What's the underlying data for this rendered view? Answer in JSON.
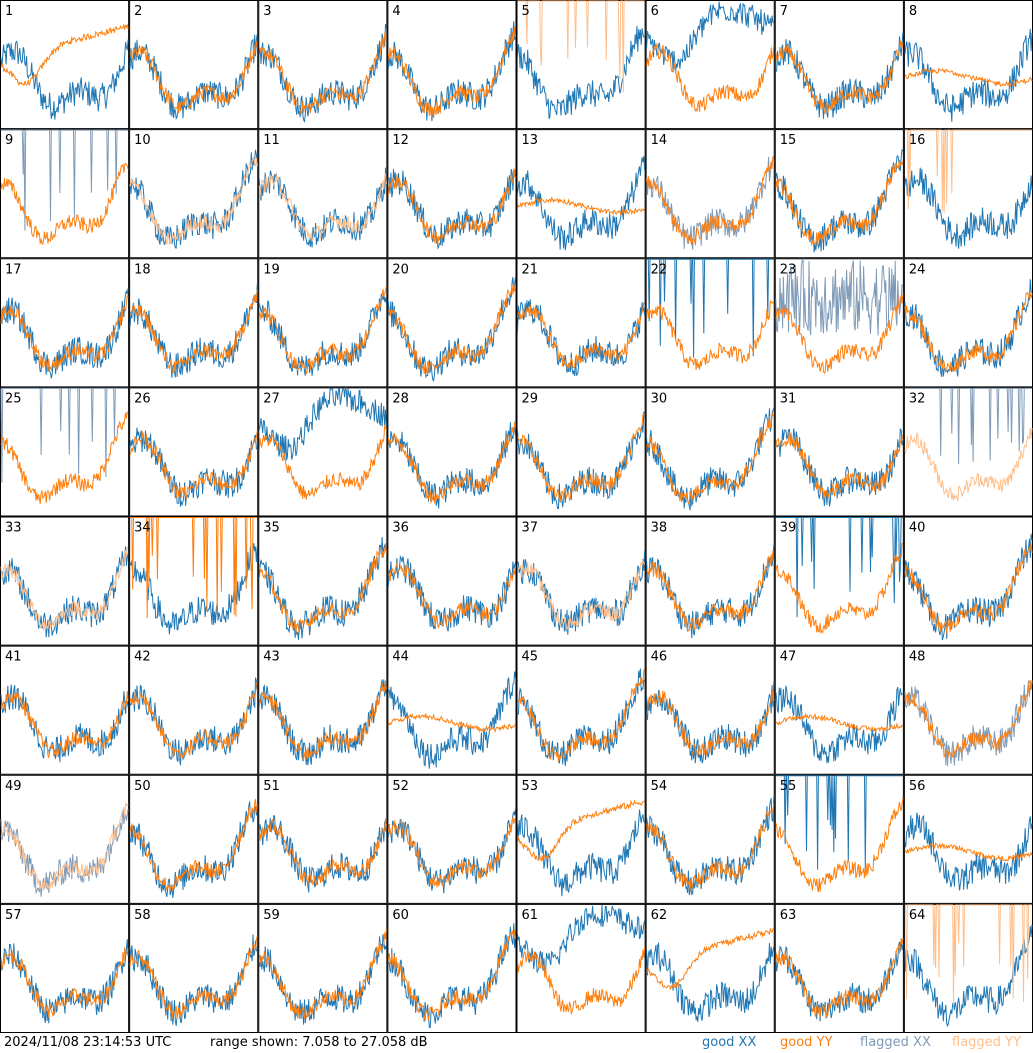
{
  "footer": {
    "timestamp": "2024/11/08 23:14:53 UTC",
    "range": "range shown: 7.058 to 27.058 dB"
  },
  "legend": [
    {
      "id": "good-xx",
      "label_a": "good ",
      "label_b": "XX",
      "color": "#1f77b4"
    },
    {
      "id": "good-yy",
      "label_a": "good ",
      "label_b": "YY",
      "color": "#ff7f0e"
    },
    {
      "id": "flag-xx",
      "label_a": "flagged ",
      "label_b": "XX",
      "color": "#7f9bb8"
    },
    {
      "id": "flag-yy",
      "label_a": "flagged ",
      "label_b": "YY",
      "color": "#ffbf8c"
    }
  ],
  "chart_data": {
    "type": "line",
    "grid": "8x8 small multiples",
    "ylim": [
      7.058,
      27.058
    ],
    "yunit": "dB",
    "series_names": [
      "good XX",
      "good YY",
      "flagged XX",
      "flagged YY"
    ],
    "colors": {
      "good_xx": "#1f77b4",
      "good_yy": "#ff7f0e",
      "flagged_xx": "#7f9bb8",
      "flagged_yy": "#ffbf8c"
    },
    "panels": [
      {
        "label": "1",
        "xx": "good",
        "yy": "good",
        "mode": "yy-low"
      },
      {
        "label": "2",
        "xx": "good",
        "yy": "good",
        "mode": "normal"
      },
      {
        "label": "3",
        "xx": "good",
        "yy": "good",
        "mode": "normal"
      },
      {
        "label": "4",
        "xx": "good",
        "yy": "good",
        "mode": "normal"
      },
      {
        "label": "5",
        "xx": "good",
        "yy": "flagged",
        "mode": "yy-spikes"
      },
      {
        "label": "6",
        "xx": "good",
        "yy": "good",
        "mode": "xx-low"
      },
      {
        "label": "7",
        "xx": "good",
        "yy": "good",
        "mode": "normal"
      },
      {
        "label": "8",
        "xx": "good",
        "yy": "good",
        "mode": "yy-flat"
      },
      {
        "label": "9",
        "xx": "flagged",
        "yy": "good",
        "mode": "xx-spikes"
      },
      {
        "label": "10",
        "xx": "good",
        "yy": "flagged",
        "mode": "normal"
      },
      {
        "label": "11",
        "xx": "good",
        "yy": "flagged",
        "mode": "normal"
      },
      {
        "label": "12",
        "xx": "good",
        "yy": "good",
        "mode": "normal"
      },
      {
        "label": "13",
        "xx": "good",
        "yy": "good",
        "mode": "yy-flat"
      },
      {
        "label": "14",
        "xx": "flagged",
        "yy": "good",
        "mode": "normal"
      },
      {
        "label": "15",
        "xx": "good",
        "yy": "good",
        "mode": "normal"
      },
      {
        "label": "16",
        "xx": "good",
        "yy": "flagged",
        "mode": "yy-spikes"
      },
      {
        "label": "17",
        "xx": "good",
        "yy": "good",
        "mode": "normal"
      },
      {
        "label": "18",
        "xx": "good",
        "yy": "good",
        "mode": "normal"
      },
      {
        "label": "19",
        "xx": "good",
        "yy": "good",
        "mode": "normal"
      },
      {
        "label": "20",
        "xx": "good",
        "yy": "good",
        "mode": "normal"
      },
      {
        "label": "21",
        "xx": "good",
        "yy": "good",
        "mode": "normal"
      },
      {
        "label": "22",
        "xx": "good",
        "yy": "good",
        "mode": "xx-spikes"
      },
      {
        "label": "23",
        "xx": "flagged",
        "yy": "good",
        "mode": "xx-noisy"
      },
      {
        "label": "24",
        "xx": "good",
        "yy": "good",
        "mode": "normal"
      },
      {
        "label": "25",
        "xx": "flagged",
        "yy": "good",
        "mode": "xx-spikes"
      },
      {
        "label": "26",
        "xx": "good",
        "yy": "good",
        "mode": "normal"
      },
      {
        "label": "27",
        "xx": "good",
        "yy": "good",
        "mode": "xx-low"
      },
      {
        "label": "28",
        "xx": "good",
        "yy": "good",
        "mode": "normal"
      },
      {
        "label": "29",
        "xx": "good",
        "yy": "good",
        "mode": "normal"
      },
      {
        "label": "30",
        "xx": "good",
        "yy": "good",
        "mode": "normal"
      },
      {
        "label": "31",
        "xx": "good",
        "yy": "good",
        "mode": "normal"
      },
      {
        "label": "32",
        "xx": "flagged",
        "yy": "flagged",
        "mode": "xx-spikes"
      },
      {
        "label": "33",
        "xx": "good",
        "yy": "flagged",
        "mode": "normal"
      },
      {
        "label": "34",
        "xx": "good",
        "yy": "good",
        "mode": "yy-spikes"
      },
      {
        "label": "35",
        "xx": "good",
        "yy": "good",
        "mode": "normal"
      },
      {
        "label": "36",
        "xx": "good",
        "yy": "good",
        "mode": "normal"
      },
      {
        "label": "37",
        "xx": "good",
        "yy": "flagged",
        "mode": "normal"
      },
      {
        "label": "38",
        "xx": "good",
        "yy": "good",
        "mode": "normal"
      },
      {
        "label": "39",
        "xx": "good",
        "yy": "good",
        "mode": "xx-spikes"
      },
      {
        "label": "40",
        "xx": "good",
        "yy": "good",
        "mode": "normal"
      },
      {
        "label": "41",
        "xx": "good",
        "yy": "good",
        "mode": "normal"
      },
      {
        "label": "42",
        "xx": "good",
        "yy": "good",
        "mode": "normal"
      },
      {
        "label": "43",
        "xx": "good",
        "yy": "good",
        "mode": "normal"
      },
      {
        "label": "44",
        "xx": "good",
        "yy": "good",
        "mode": "yy-flat"
      },
      {
        "label": "45",
        "xx": "good",
        "yy": "good",
        "mode": "normal"
      },
      {
        "label": "46",
        "xx": "good",
        "yy": "good",
        "mode": "normal"
      },
      {
        "label": "47",
        "xx": "good",
        "yy": "good",
        "mode": "yy-flat"
      },
      {
        "label": "48",
        "xx": "flagged",
        "yy": "good",
        "mode": "normal"
      },
      {
        "label": "49",
        "xx": "flagged",
        "yy": "flagged",
        "mode": "normal"
      },
      {
        "label": "50",
        "xx": "good",
        "yy": "good",
        "mode": "normal"
      },
      {
        "label": "51",
        "xx": "good",
        "yy": "good",
        "mode": "normal"
      },
      {
        "label": "52",
        "xx": "good",
        "yy": "good",
        "mode": "normal"
      },
      {
        "label": "53",
        "xx": "good",
        "yy": "good",
        "mode": "yy-low"
      },
      {
        "label": "54",
        "xx": "good",
        "yy": "good",
        "mode": "normal"
      },
      {
        "label": "55",
        "xx": "good",
        "yy": "good",
        "mode": "xx-spikes"
      },
      {
        "label": "56",
        "xx": "good",
        "yy": "good",
        "mode": "yy-flat"
      },
      {
        "label": "57",
        "xx": "good",
        "yy": "good",
        "mode": "normal"
      },
      {
        "label": "58",
        "xx": "good",
        "yy": "good",
        "mode": "normal"
      },
      {
        "label": "59",
        "xx": "good",
        "yy": "good",
        "mode": "normal"
      },
      {
        "label": "60",
        "xx": "good",
        "yy": "good",
        "mode": "normal"
      },
      {
        "label": "61",
        "xx": "good",
        "yy": "good",
        "mode": "xx-low"
      },
      {
        "label": "62",
        "xx": "good",
        "yy": "good",
        "mode": "yy-low"
      },
      {
        "label": "63",
        "xx": "good",
        "yy": "good",
        "mode": "normal"
      },
      {
        "label": "64",
        "xx": "good",
        "yy": "flagged",
        "mode": "yy-spikes"
      }
    ]
  }
}
